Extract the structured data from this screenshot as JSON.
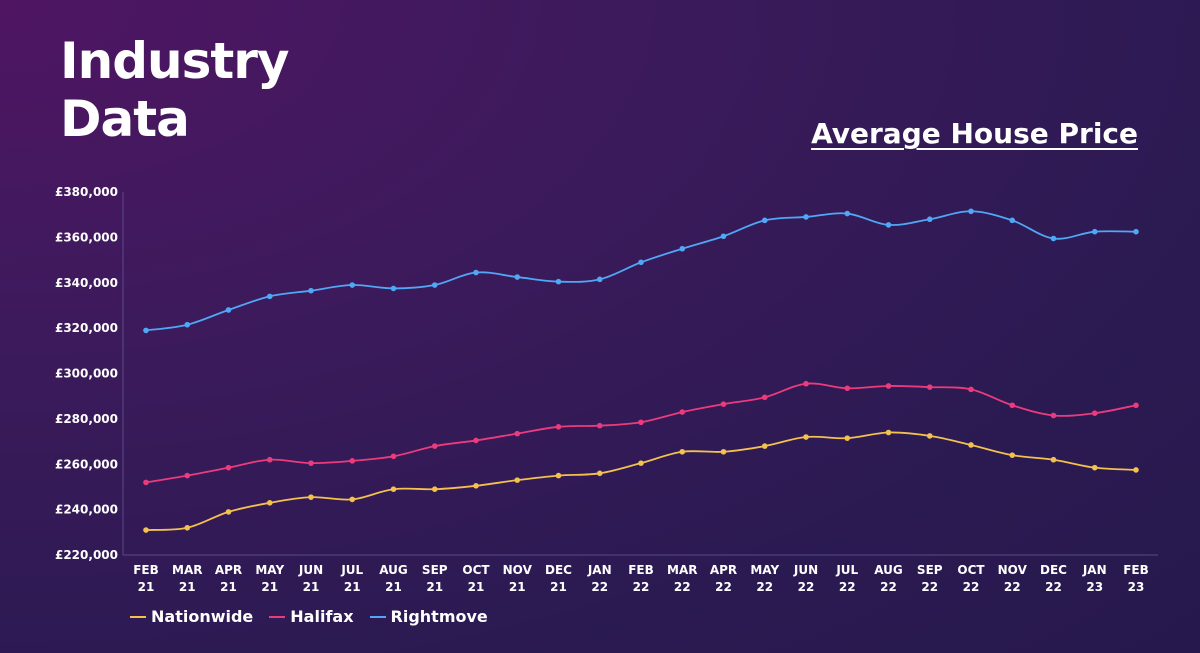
{
  "header": {
    "title_line1": "Industry",
    "title_line2": "Data",
    "subtitle": "Average House Price"
  },
  "colors": {
    "Nationwide": "#f2c14e",
    "Halifax": "#ec3b7d",
    "Rightmove": "#4fa7f5",
    "axis": "#5a4a86"
  },
  "chart_data": {
    "type": "line",
    "title": "Average House Price",
    "xlabel": "",
    "ylabel": "",
    "ylim": [
      220000,
      380000
    ],
    "yticks": [
      "£220,000",
      "£240,000",
      "£260,000",
      "£280,000",
      "£300,000",
      "£320,000",
      "£340,000",
      "£360,000",
      "£380,000"
    ],
    "categories": [
      [
        "FEB",
        "21"
      ],
      [
        "MAR",
        "21"
      ],
      [
        "APR",
        "21"
      ],
      [
        "MAY",
        "21"
      ],
      [
        "JUN",
        "21"
      ],
      [
        "JUL",
        "21"
      ],
      [
        "AUG",
        "21"
      ],
      [
        "SEP",
        "21"
      ],
      [
        "OCT",
        "21"
      ],
      [
        "NOV",
        "21"
      ],
      [
        "DEC",
        "21"
      ],
      [
        "JAN",
        "22"
      ],
      [
        "FEB",
        "22"
      ],
      [
        "MAR",
        "22"
      ],
      [
        "APR",
        "22"
      ],
      [
        "MAY",
        "22"
      ],
      [
        "JUN",
        "22"
      ],
      [
        "JUL",
        "22"
      ],
      [
        "AUG",
        "22"
      ],
      [
        "SEP",
        "22"
      ],
      [
        "OCT",
        "22"
      ],
      [
        "NOV",
        "22"
      ],
      [
        "DEC",
        "22"
      ],
      [
        "JAN",
        "23"
      ],
      [
        "FEB",
        "23"
      ]
    ],
    "series": [
      {
        "name": "Nationwide",
        "values": [
          231000,
          232000,
          239000,
          243000,
          245500,
          244500,
          249000,
          249000,
          250500,
          253000,
          255000,
          256000,
          260500,
          265500,
          265500,
          268000,
          272000,
          271500,
          274000,
          272500,
          268500,
          264000,
          262000,
          258500,
          257500
        ]
      },
      {
        "name": "Halifax",
        "values": [
          252000,
          255000,
          258500,
          262000,
          260500,
          261500,
          263500,
          268000,
          270500,
          273500,
          276500,
          277000,
          278500,
          283000,
          286500,
          289500,
          295500,
          293500,
          294500,
          294000,
          293000,
          286000,
          281500,
          282500,
          286000
        ]
      },
      {
        "name": "Rightmove",
        "values": [
          319000,
          321500,
          328000,
          334000,
          336500,
          339000,
          337500,
          339000,
          344500,
          342500,
          340500,
          341500,
          349000,
          355000,
          360500,
          367500,
          369000,
          370500,
          365500,
          368000,
          371500,
          367500,
          359500,
          362500,
          362500
        ]
      }
    ],
    "legend": [
      "Nationwide",
      "Halifax",
      "Rightmove"
    ],
    "legend_position": "bottom-left",
    "grid": false
  }
}
